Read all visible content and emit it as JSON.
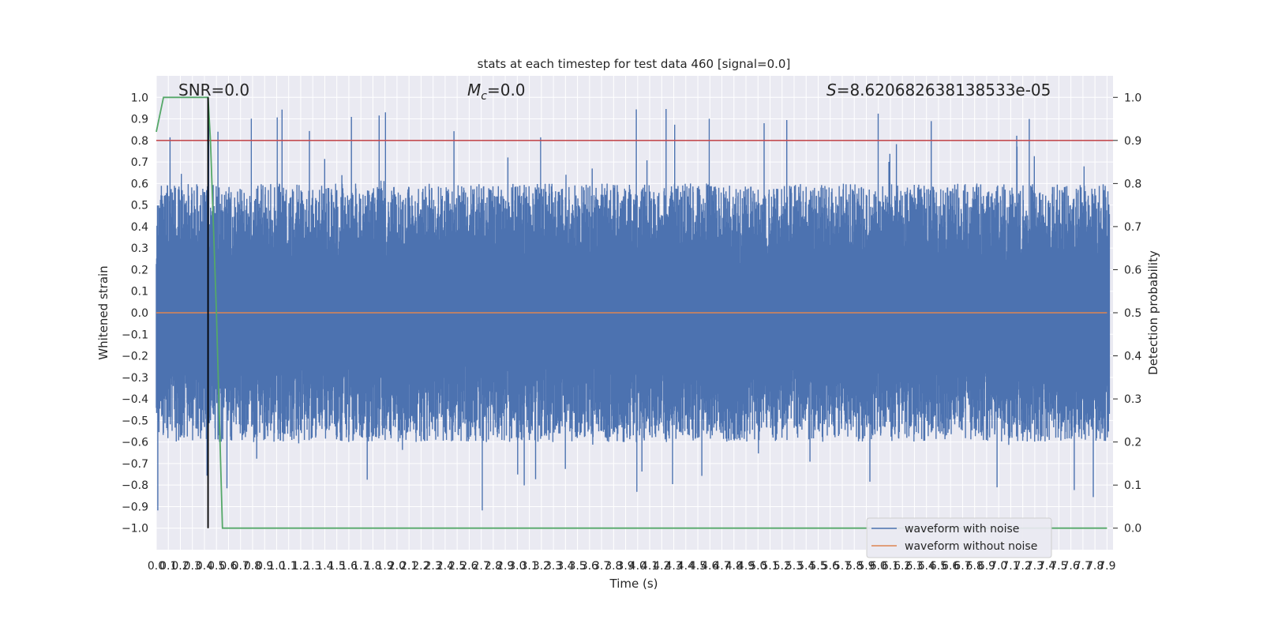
{
  "chart_data": {
    "type": "line",
    "title": "stats at each timestep for test data 460 [signal=0.0]",
    "xlabel": "Time (s)",
    "ylabel_left": "Whitened strain",
    "ylabel_right": "Detection probability",
    "xlim": [
      0.0,
      7.95
    ],
    "ylim_left": [
      -1.1,
      1.1
    ],
    "ylim_right": [
      -0.05,
      1.05
    ],
    "x_tick_step": 0.1,
    "x_tick_max": 7.9,
    "y_left_ticks": [
      1.0,
      0.9,
      0.8,
      0.7,
      0.6,
      0.5,
      0.4,
      0.3,
      0.2,
      0.1,
      0.0,
      -0.1,
      -0.2,
      -0.3,
      -0.4,
      -0.5,
      -0.6,
      -0.7,
      -0.8,
      -0.9,
      -1.0
    ],
    "y_left_tick_labels": [
      "1.0",
      "0.9",
      "0.8",
      "0.7",
      "0.6",
      "0.5",
      "0.4",
      "0.3",
      "0.2",
      "0.1",
      "0.0",
      "−0.1",
      "−0.2",
      "−0.3",
      "−0.4",
      "−0.5",
      "−0.6",
      "−0.7",
      "−0.8",
      "−0.9",
      "−1.0"
    ],
    "y_right_ticks": [
      1.0,
      0.9,
      0.8,
      0.7,
      0.6,
      0.5,
      0.4,
      0.3,
      0.2,
      0.1,
      0.0
    ],
    "y_right_tick_labels": [
      "1.0",
      "0.9",
      "0.8",
      "0.7",
      "0.6",
      "0.5",
      "0.4",
      "0.3",
      "0.2",
      "0.1",
      "0.0"
    ],
    "annotations": {
      "snr": "SNR=0.0",
      "mc_symbol": "M",
      "mc_sub": "c",
      "mc_value": "=0.0",
      "s_symbol": "S",
      "s_value": "=8.620682638138533e-05"
    },
    "series": [
      {
        "name": "waveform with noise",
        "color": "#4c72b0",
        "axis": "left",
        "description_values": {
          "typical_abs_max": 0.5,
          "peak_max": 0.99,
          "peak_min": -1.0
        }
      },
      {
        "name": "waveform without noise",
        "color": "#dd8452",
        "axis": "left",
        "constant_value": 0.0
      },
      {
        "name": "detection probability",
        "color": "#55a868",
        "axis": "right",
        "x": [
          0.0,
          0.06,
          0.1,
          0.2,
          0.3,
          0.43,
          0.45,
          0.5,
          0.55,
          7.9
        ],
        "y": [
          0.92,
          1.0,
          1.0,
          1.0,
          1.0,
          1.0,
          0.9,
          0.5,
          0.0,
          0.0
        ]
      }
    ],
    "threshold_line": {
      "value": 0.9,
      "axis": "right",
      "color": "#c44e52"
    },
    "marker_line": {
      "x": 0.43,
      "color": "#000000",
      "y_range": [
        -1.0,
        1.0
      ]
    },
    "legend": {
      "placement": "lower-right",
      "entries": [
        "waveform with noise",
        "waveform without noise"
      ]
    },
    "grid": true,
    "background_color": "#eaeaf2"
  }
}
